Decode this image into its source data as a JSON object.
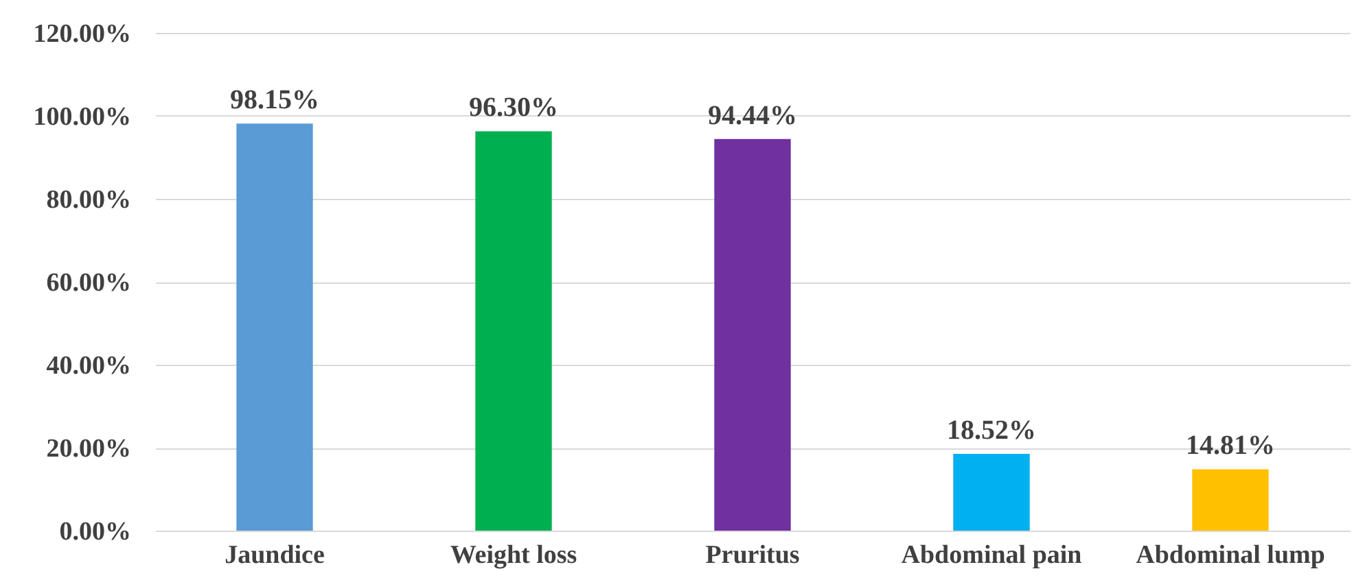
{
  "chart_data": {
    "type": "bar",
    "categories": [
      "Jaundice",
      "Weight loss",
      "Pruritus",
      "Abdominal pain",
      "Abdominal lump"
    ],
    "values": [
      98.15,
      96.3,
      94.44,
      18.52,
      14.81
    ],
    "colors": [
      "#5b9bd5",
      "#00b050",
      "#7030a0",
      "#00b0f0",
      "#ffc000"
    ],
    "value_labels": [
      "98.15%",
      "96.30%",
      "94.44%",
      "18.52%",
      "14.81%"
    ],
    "ylim": [
      0,
      120
    ],
    "yticks": [
      {
        "value": 0,
        "label": "0.00%"
      },
      {
        "value": 20,
        "label": "20.00%"
      },
      {
        "value": 40,
        "label": "40.00%"
      },
      {
        "value": 60,
        "label": "60.00%"
      },
      {
        "value": 80,
        "label": "80.00%"
      },
      {
        "value": 100,
        "label": "100.00%"
      },
      {
        "value": 120,
        "label": "120.00%"
      }
    ],
    "grid": "y"
  }
}
